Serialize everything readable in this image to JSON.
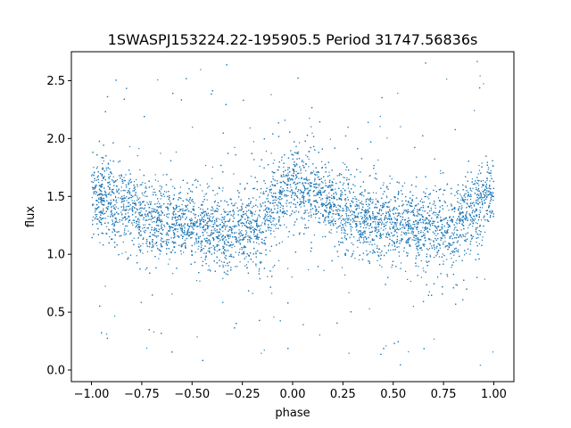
{
  "chart_data": {
    "type": "scatter",
    "title": "1SWASPJ153224.22-195905.5 Period 31747.56836s",
    "xlabel": "phase",
    "ylabel": "flux",
    "xlim": [
      -1.1,
      1.1
    ],
    "ylim": [
      -0.1,
      2.75
    ],
    "xticks": [
      -1.0,
      -0.75,
      -0.5,
      -0.25,
      0.0,
      0.25,
      0.5,
      0.75,
      1.0
    ],
    "xtick_labels": [
      "−1.00",
      "−0.75",
      "−0.50",
      "−0.25",
      "0.00",
      "0.25",
      "0.50",
      "0.75",
      "1.00"
    ],
    "yticks": [
      0.0,
      0.5,
      1.0,
      1.5,
      2.0,
      2.5
    ],
    "ytick_labels": [
      "0.0",
      "0.5",
      "1.0",
      "1.5",
      "2.0",
      "2.5"
    ],
    "grid": false,
    "marker_color": "#1f77b4",
    "series": [
      {
        "x": [
          -1.0,
          -0.9,
          -0.8,
          -0.7,
          -0.6,
          -0.5,
          -0.4,
          -0.3,
          -0.2,
          -0.1,
          0.0,
          0.1,
          0.2,
          0.3,
          0.4,
          0.5,
          0.6,
          0.7,
          0.8,
          0.9,
          1.0
        ],
        "y": [
          1.55,
          1.45,
          1.38,
          1.32,
          1.28,
          1.25,
          1.22,
          1.2,
          1.2,
          1.4,
          1.6,
          1.52,
          1.42,
          1.35,
          1.3,
          1.26,
          1.23,
          1.21,
          1.22,
          1.4,
          1.55
        ]
      }
    ]
  }
}
